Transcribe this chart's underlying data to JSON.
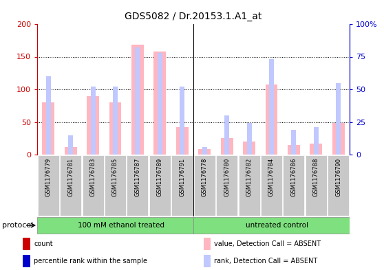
{
  "title": "GDS5082 / Dr.20153.1.A1_at",
  "samples": [
    "GSM1176779",
    "GSM1176781",
    "GSM1176783",
    "GSM1176785",
    "GSM1176787",
    "GSM1176789",
    "GSM1176791",
    "GSM1176778",
    "GSM1176780",
    "GSM1176782",
    "GSM1176784",
    "GSM1176786",
    "GSM1176788",
    "GSM1176790"
  ],
  "absent_value": [
    80,
    12,
    90,
    80,
    168,
    158,
    42,
    8,
    25,
    20,
    107,
    15,
    17,
    48
  ],
  "absent_rank": [
    60,
    15,
    52,
    52,
    82,
    78,
    52,
    6,
    30,
    24,
    73,
    19,
    21,
    55
  ],
  "group1_label": "100 mM ethanol treated",
  "group2_label": "untreated control",
  "group1_count": 7,
  "group2_count": 7,
  "ylim_left": [
    0,
    200
  ],
  "ylim_right": [
    0,
    100
  ],
  "yticks_left": [
    0,
    50,
    100,
    150,
    200
  ],
  "yticks_right": [
    0,
    25,
    50,
    75,
    100
  ],
  "yticklabels_left": [
    "0",
    "50",
    "100",
    "150",
    "200"
  ],
  "yticklabels_right": [
    "0",
    "25",
    "50",
    "75",
    "100%"
  ],
  "color_absent_value": "#FFB6C1",
  "color_absent_rank": "#C0C8FF",
  "color_present_value": "#CC0000",
  "color_present_rank": "#0000CC",
  "color_group_bg": "#7EE07E",
  "color_xtick_bg": "#C8C8C8",
  "color_axis_left": "#CC0000",
  "color_axis_right": "#0000CC",
  "protocol_label": "protocol",
  "legend_items": [
    {
      "color": "#CC0000",
      "label": "count"
    },
    {
      "color": "#0000CC",
      "label": "percentile rank within the sample"
    },
    {
      "color": "#FFB6C1",
      "label": "value, Detection Call = ABSENT"
    },
    {
      "color": "#C0C8FF",
      "label": "rank, Detection Call = ABSENT"
    }
  ]
}
